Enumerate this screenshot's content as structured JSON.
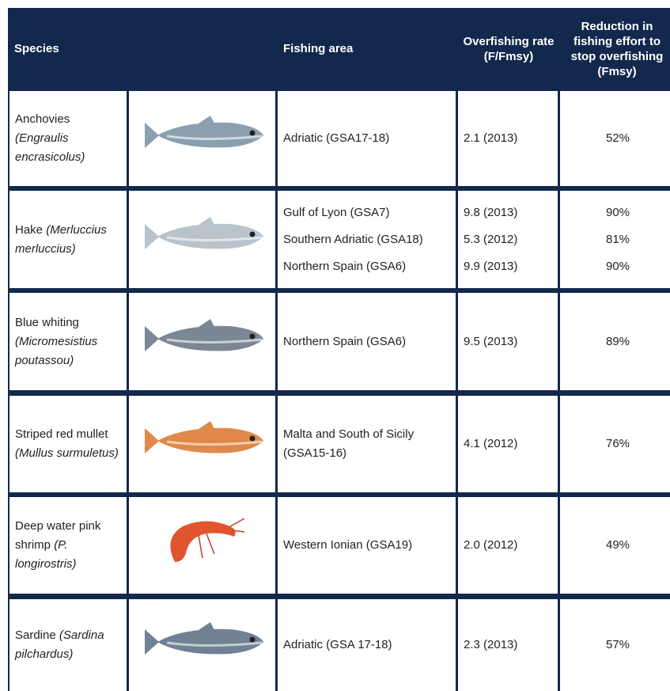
{
  "table": {
    "header": [
      "Species",
      "Fishing area",
      "Overfishing rate (F/Fmsy)",
      "Reduction in fishing effort to stop overfishing (Fmsy)"
    ],
    "rows": [
      {
        "common": "Anchovies",
        "latin": "(Engraulis encrasicolus)",
        "entries": [
          {
            "area": "Adriatic (GSA17-18)",
            "rate": "2.1 (2013)",
            "reduction": "52%"
          }
        ]
      },
      {
        "common": "Hake",
        "latin": "(Merluccius merluccius)",
        "entries": [
          {
            "area": "Gulf of Lyon (GSA7)",
            "rate": "9.8 (2013)",
            "reduction": "90%"
          },
          {
            "area": "Southern Adriatic (GSA18)",
            "rate": "5.3 (2012)",
            "reduction": "81%"
          },
          {
            "area": "Northern Spain (GSA6)",
            "rate": "9.9 (2013)",
            "reduction": "90%"
          }
        ]
      },
      {
        "common": "Blue whiting",
        "latin": "(Micromesistius poutassou)",
        "entries": [
          {
            "area": "Northern Spain (GSA6)",
            "rate": "9.5 (2013)",
            "reduction": "89%"
          }
        ]
      },
      {
        "common": "Striped red mullet",
        "latin": "(Mullus surmuletus)",
        "entries": [
          {
            "area": "Malta and South of Sicily (GSA15-16)",
            "rate": "4.1 (2012)",
            "reduction": "76%"
          }
        ]
      },
      {
        "common": "Deep water pink shrimp",
        "latin": "(P. longirostris)",
        "entries": [
          {
            "area": "Western Ionian (GSA19)",
            "rate": "2.0 (2012)",
            "reduction": "49%"
          }
        ]
      },
      {
        "common": "Sardine",
        "latin": "(Sardina pilchardus)",
        "entries": [
          {
            "area": "Adriatic (GSA 17-18)",
            "rate": "2.3 (2013)",
            "reduction": "57%"
          }
        ]
      }
    ]
  }
}
